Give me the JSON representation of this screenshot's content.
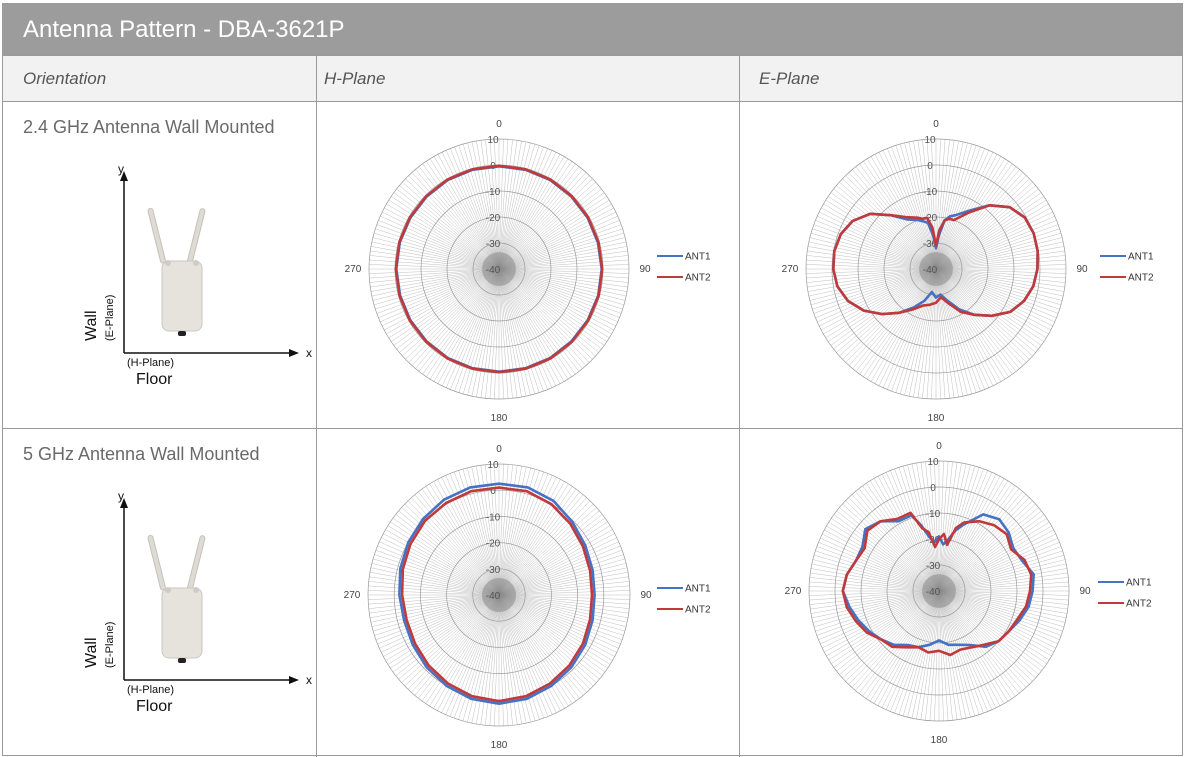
{
  "title": "Antenna Pattern - DBA-3621P",
  "headers": [
    "Orientation",
    "H-Plane",
    "E-Plane"
  ],
  "rows": [
    {
      "label": "2.4 GHz Antenna Wall Mounted"
    },
    {
      "label": "5 GHz Antenna Wall Mounted"
    }
  ],
  "diagram": {
    "y_axis": "y",
    "x_axis": "x",
    "wall": "Wall",
    "e_plane": "(E-Plane)",
    "h_plane": "(H-Plane)",
    "floor": "Floor"
  },
  "colors": {
    "ant1": "#4472c4",
    "ant2": "#c0393b",
    "grid": "#8c8c8c"
  },
  "chart_data": [
    {
      "type": "polar-line",
      "row": "2.4 GHz Antenna Wall Mounted",
      "plane": "H-Plane",
      "r_ticks": [
        "10",
        "0",
        "-10",
        "-20",
        "-30",
        "-40"
      ],
      "rlim": [
        -40,
        10
      ],
      "angle_labels": [
        "0",
        "90",
        "180",
        "270"
      ],
      "angles": [
        0,
        15,
        30,
        45,
        60,
        75,
        90,
        105,
        120,
        135,
        150,
        165,
        180,
        195,
        210,
        225,
        240,
        255,
        270,
        285,
        300,
        315,
        330,
        345
      ],
      "series": [
        {
          "name": "ANT1",
          "values": [
            -0.5,
            -0.5,
            -0.5,
            -0.6,
            -0.6,
            -0.6,
            -0.5,
            -0.5,
            -0.6,
            -0.6,
            -0.5,
            -0.5,
            -0.5,
            -0.5,
            -0.5,
            -0.6,
            -0.6,
            -0.6,
            -0.5,
            -0.5,
            -0.6,
            -0.6,
            -0.5,
            -0.5
          ]
        },
        {
          "name": "ANT2",
          "values": [
            -0.3,
            -0.3,
            -0.3,
            -0.4,
            -0.4,
            -0.4,
            -0.3,
            -0.3,
            -0.4,
            -0.4,
            -0.3,
            -0.3,
            -0.3,
            -0.3,
            -0.3,
            -0.4,
            -0.4,
            -0.4,
            -0.3,
            -0.3,
            -0.4,
            -0.4,
            -0.3,
            -0.3
          ]
        }
      ]
    },
    {
      "type": "polar-line",
      "row": "2.4 GHz Antenna Wall Mounted",
      "plane": "E-Plane",
      "r_ticks": [
        "10",
        "0",
        "-10",
        "-20",
        "-30",
        "-40"
      ],
      "rlim": [
        -40,
        10
      ],
      "angle_labels": [
        "0",
        "90",
        "180",
        "270"
      ],
      "angles": [
        0,
        5,
        10,
        15,
        20,
        30,
        40,
        50,
        60,
        70,
        80,
        90,
        100,
        110,
        120,
        130,
        140,
        150,
        160,
        170,
        180,
        190,
        200,
        210,
        220,
        230,
        240,
        250,
        260,
        270,
        280,
        290,
        300,
        310,
        320,
        330,
        340,
        345,
        350,
        355
      ],
      "series": [
        {
          "name": "ANT1",
          "values": [
            -32,
            -27,
            -21,
            -19,
            -18,
            -14,
            -8,
            -3,
            -0.5,
            0,
            -0.3,
            -1,
            -2,
            -4,
            -7,
            -12,
            -17,
            -22,
            -27,
            -30,
            -29,
            -31,
            -27,
            -23,
            -18,
            -13,
            -8,
            -4,
            -1.5,
            -0.5,
            -0.3,
            -1,
            -3,
            -7,
            -13,
            -18,
            -20,
            -21,
            -22,
            -27
          ]
        },
        {
          "name": "ANT2",
          "values": [
            -31,
            -25,
            -21,
            -20,
            -20,
            -15,
            -8,
            -3,
            -0.5,
            0,
            -0.3,
            -1,
            -2,
            -4,
            -7,
            -12,
            -17,
            -21,
            -26,
            -29,
            -27,
            -26,
            -25,
            -22,
            -18,
            -13,
            -8,
            -4,
            -1.5,
            -0.5,
            -0.3,
            -1,
            -3,
            -7,
            -13,
            -17,
            -19,
            -20,
            -20,
            -24
          ]
        }
      ]
    },
    {
      "type": "polar-line",
      "row": "5 GHz Antenna Wall Mounted",
      "plane": "H-Plane",
      "r_ticks": [
        "10",
        "0",
        "-10",
        "-20",
        "-30",
        "-40"
      ],
      "rlim": [
        -40,
        10
      ],
      "angle_labels": [
        "0",
        "90",
        "180",
        "270"
      ],
      "angles": [
        0,
        15,
        30,
        45,
        60,
        75,
        90,
        105,
        120,
        135,
        150,
        165,
        180,
        195,
        210,
        225,
        240,
        255,
        270,
        285,
        300,
        315,
        330,
        345
      ],
      "series": [
        {
          "name": "ANT1",
          "values": [
            2.5,
            2.5,
            1.5,
            -0.5,
            -2,
            -3,
            -3.5,
            -3,
            -2,
            -1,
            0,
            1,
            1.5,
            1,
            0,
            -1,
            -2,
            -2.5,
            -2,
            -1,
            0,
            1,
            2,
            2.5
          ]
        },
        {
          "name": "ANT2",
          "values": [
            1,
            1,
            0,
            -1.5,
            -3,
            -4,
            -4.5,
            -4,
            -3,
            -2,
            -1,
            0,
            0.5,
            0,
            -1,
            -2,
            -3,
            -3.5,
            -3,
            -2,
            -1,
            0,
            0.5,
            1
          ]
        }
      ]
    },
    {
      "type": "polar-line",
      "row": "5 GHz Antenna Wall Mounted",
      "plane": "E-Plane",
      "r_ticks": [
        "10",
        "0",
        "-10",
        "-20",
        "-30",
        "-40"
      ],
      "rlim": [
        -40,
        10
      ],
      "angle_labels": [
        "0",
        "90",
        "180",
        "270"
      ],
      "angles": [
        0,
        5,
        10,
        15,
        20,
        30,
        40,
        50,
        60,
        70,
        80,
        90,
        100,
        110,
        120,
        130,
        140,
        150,
        160,
        170,
        180,
        190,
        200,
        210,
        220,
        230,
        240,
        250,
        260,
        270,
        280,
        290,
        300,
        310,
        320,
        330,
        340,
        345,
        350,
        355
      ],
      "series": [
        {
          "name": "ANT1",
          "values": [
            -19,
            -22,
            -20,
            -16,
            -13,
            -6,
            -4,
            -5,
            -7,
            -6,
            -3,
            -4,
            -5,
            -7,
            -9,
            -10,
            -12,
            -16,
            -18,
            -19,
            -21,
            -19,
            -17,
            -16,
            -13,
            -11,
            -9,
            -7,
            -5,
            -3,
            -4,
            -6,
            -6,
            -3,
            -5,
            -9,
            -9,
            -14,
            -19,
            -21
          ]
        },
        {
          "name": "ANT2",
          "values": [
            -20,
            -18,
            -22,
            -15,
            -12,
            -9,
            -7,
            -6,
            -8,
            -5,
            -4,
            -5,
            -6,
            -8,
            -9,
            -10,
            -13,
            -15,
            -16,
            -15,
            -17,
            -16,
            -17,
            -15,
            -12,
            -11,
            -8,
            -6,
            -4,
            -3,
            -4,
            -6,
            -7,
            -4,
            -5,
            -8,
            -8,
            -15,
            -17,
            -23
          ]
        }
      ]
    }
  ]
}
